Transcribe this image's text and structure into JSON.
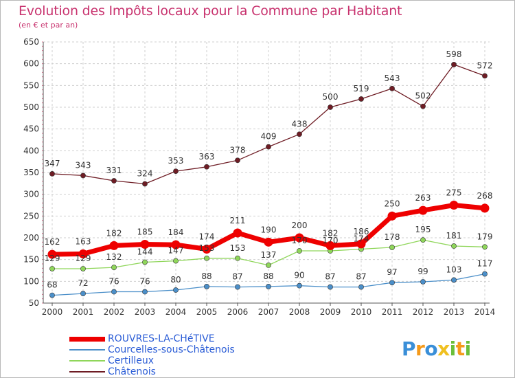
{
  "chart_data": {
    "type": "line",
    "title": "Evolution des Impôts locaux pour la Commune par Habitant",
    "subtitle": "(en € et par an)",
    "categories": [
      "2000",
      "2001",
      "2002",
      "2003",
      "2004",
      "2005",
      "2006",
      "2007",
      "2008",
      "2009",
      "2010",
      "2011",
      "2012",
      "2013",
      "2014"
    ],
    "ylim": [
      50,
      650
    ],
    "yticks": [
      50,
      100,
      150,
      200,
      250,
      300,
      350,
      400,
      450,
      500,
      550,
      600,
      650
    ],
    "grid": true,
    "series": [
      {
        "name": "Châtenois",
        "color": "#6e1c24",
        "values": [
          347,
          343,
          331,
          324,
          353,
          363,
          378,
          409,
          438,
          500,
          519,
          543,
          502,
          598,
          572
        ]
      },
      {
        "name": "Certilleux",
        "color": "#8fd65a",
        "values": [
          129,
          129,
          132,
          144,
          147,
          153,
          153,
          137,
          170,
          170,
          174,
          178,
          195,
          181,
          179
        ]
      },
      {
        "name": "Courcelles-sous-Châtenois",
        "color": "#4b8fc9",
        "values": [
          68,
          72,
          76,
          76,
          80,
          88,
          87,
          88,
          90,
          87,
          87,
          97,
          99,
          103,
          117
        ]
      },
      {
        "name": "ROUVRES-LA-CHéTIVE",
        "color": "#ee0000",
        "values": [
          162,
          163,
          182,
          185,
          184,
          174,
          211,
          190,
          200,
          182,
          186,
          250,
          263,
          275,
          268
        ]
      }
    ]
  },
  "legend": [
    {
      "label": "ROUVRES-LA-CHéTIVE",
      "color": "#ee0000"
    },
    {
      "label": "Courcelles-sous-Châtenois",
      "color": "#4b8fc9"
    },
    {
      "label": "Certilleux",
      "color": "#8fd65a"
    },
    {
      "label": "Châtenois",
      "color": "#6e1c24"
    }
  ],
  "logo": {
    "letters": [
      "P",
      "r",
      "o",
      "x",
      "i",
      "t",
      "i"
    ],
    "colors": [
      "#3a8fd8",
      "#f59a1b",
      "#3a8fd8",
      "#f0c020",
      "#6bbf3a",
      "#f59a1b",
      "#6bbf3a"
    ]
  }
}
